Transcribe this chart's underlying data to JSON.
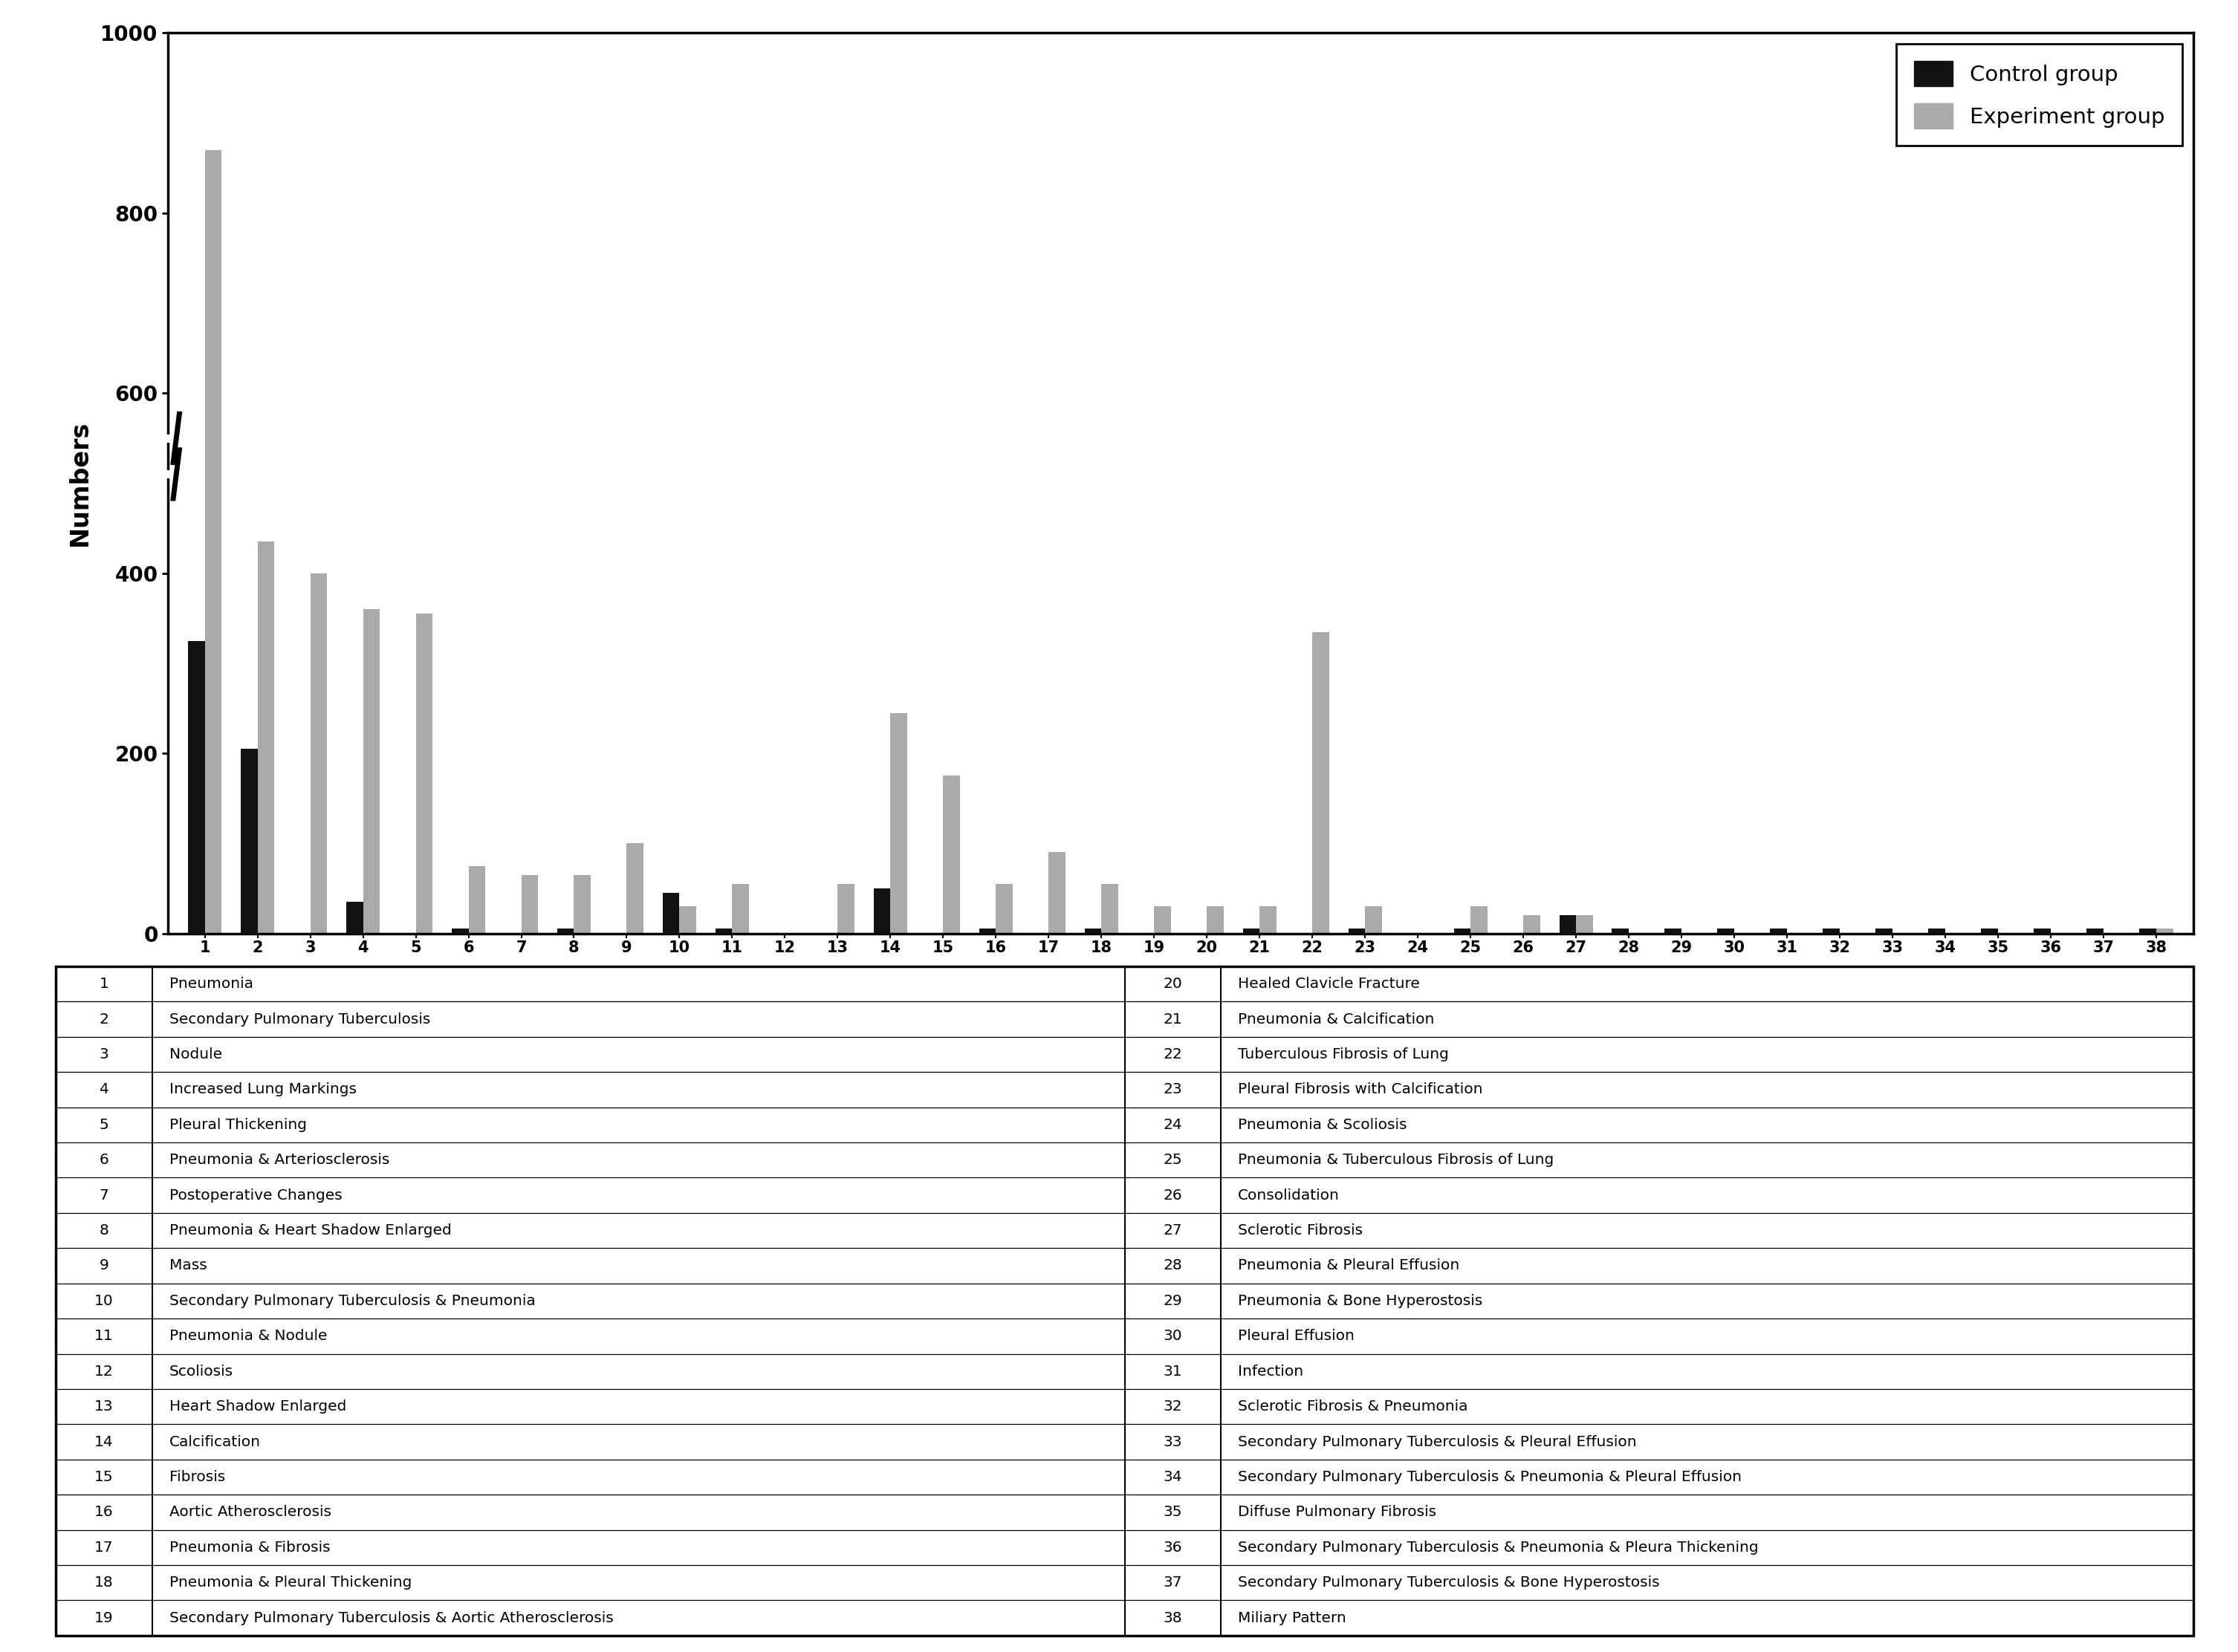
{
  "control_values": [
    325,
    205,
    0,
    35,
    0,
    5,
    0,
    5,
    0,
    45,
    5,
    0,
    0,
    50,
    0,
    5,
    0,
    5,
    0,
    0,
    5,
    0,
    5,
    0,
    5,
    0,
    20,
    5,
    5,
    5,
    5,
    5,
    5,
    5,
    5,
    5,
    5,
    5
  ],
  "experiment_values": [
    870,
    435,
    400,
    360,
    355,
    75,
    65,
    65,
    100,
    30,
    55,
    0,
    55,
    245,
    175,
    55,
    90,
    55,
    30,
    30,
    30,
    335,
    30,
    0,
    30,
    20,
    20,
    0,
    0,
    0,
    0,
    0,
    0,
    0,
    0,
    0,
    0,
    5
  ],
  "x_labels": [
    "1",
    "2",
    "3",
    "4",
    "5",
    "6",
    "7",
    "8",
    "9",
    "10",
    "11",
    "12",
    "13",
    "14",
    "15",
    "16",
    "17",
    "18",
    "19",
    "20",
    "21",
    "22",
    "23",
    "24",
    "25",
    "26",
    "27",
    "28",
    "29",
    "30",
    "31",
    "32",
    "33",
    "34",
    "35",
    "36",
    "37",
    "38"
  ],
  "ylabel": "Numbers",
  "ylim": [
    0,
    1000
  ],
  "yticks": [
    0,
    200,
    400,
    600,
    800,
    1000
  ],
  "control_color": "#111111",
  "experiment_color": "#aaaaaa",
  "legend_control": "Control group",
  "legend_experiment": "Experiment group",
  "table_data": [
    [
      "1",
      "Pneumonia",
      "20",
      "Healed Clavicle Fracture"
    ],
    [
      "2",
      "Secondary Pulmonary Tuberculosis",
      "21",
      "Pneumonia & Calcification"
    ],
    [
      "3",
      "Nodule",
      "22",
      "Tuberculous Fibrosis of Lung"
    ],
    [
      "4",
      "Increased Lung Markings",
      "23",
      "Pleural Fibrosis with Calcification"
    ],
    [
      "5",
      "Pleural Thickening",
      "24",
      "Pneumonia & Scoliosis"
    ],
    [
      "6",
      "Pneumonia & Arteriosclerosis",
      "25",
      "Pneumonia & Tuberculous Fibrosis of Lung"
    ],
    [
      "7",
      "Postoperative Changes",
      "26",
      "Consolidation"
    ],
    [
      "8",
      "Pneumonia & Heart Shadow Enlarged",
      "27",
      "Sclerotic Fibrosis"
    ],
    [
      "9",
      "Mass",
      "28",
      "Pneumonia & Pleural Effusion"
    ],
    [
      "10",
      "Secondary Pulmonary Tuberculosis & Pneumonia",
      "29",
      "Pneumonia & Bone Hyperostosis"
    ],
    [
      "11",
      "Pneumonia & Nodule",
      "30",
      "Pleural Effusion"
    ],
    [
      "12",
      "Scoliosis",
      "31",
      "Infection"
    ],
    [
      "13",
      "Heart Shadow Enlarged",
      "32",
      "Sclerotic Fibrosis & Pneumonia"
    ],
    [
      "14",
      "Calcification",
      "33",
      "Secondary Pulmonary Tuberculosis & Pleural Effusion"
    ],
    [
      "15",
      "Fibrosis",
      "34",
      "Secondary Pulmonary Tuberculosis & Pneumonia & Pleural Effusion"
    ],
    [
      "16",
      "Aortic Atherosclerosis",
      "35",
      "Diffuse Pulmonary Fibrosis"
    ],
    [
      "17",
      "Pneumonia & Fibrosis",
      "36",
      "Secondary Pulmonary Tuberculosis & Pneumonia & Pleura Thickening"
    ],
    [
      "18",
      "Pneumonia & Pleural Thickening",
      "37",
      "Secondary Pulmonary Tuberculosis & Bone Hyperostosis"
    ],
    [
      "19",
      "Secondary Pulmonary Tuberculosis & Aortic Atherosclerosis",
      "38",
      "Miliary Pattern"
    ]
  ]
}
